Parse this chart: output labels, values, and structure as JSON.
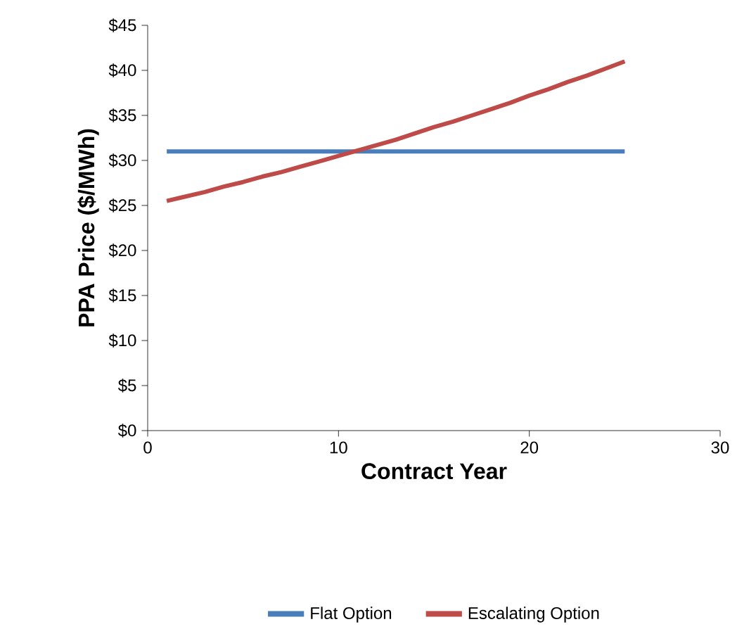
{
  "chart_data": {
    "type": "line",
    "xlabel": "Contract Year",
    "ylabel": "PPA Price ($/MWh)",
    "xlim": [
      0,
      30
    ],
    "xticks": [
      0,
      10,
      20,
      30
    ],
    "ylim": [
      0,
      45
    ],
    "yticks": [
      {
        "value": 0,
        "label": "$0"
      },
      {
        "value": 5,
        "label": "$5"
      },
      {
        "value": 10,
        "label": "$10"
      },
      {
        "value": 15,
        "label": "$15"
      },
      {
        "value": 20,
        "label": "$20"
      },
      {
        "value": 25,
        "label": "$25"
      },
      {
        "value": 30,
        "label": "$30"
      },
      {
        "value": 35,
        "label": "$35"
      },
      {
        "value": 40,
        "label": "$40"
      },
      {
        "value": 45,
        "label": "$45"
      }
    ],
    "x": [
      1,
      2,
      3,
      4,
      5,
      6,
      7,
      8,
      9,
      10,
      11,
      12,
      13,
      14,
      15,
      16,
      17,
      18,
      19,
      20,
      21,
      22,
      23,
      24,
      25
    ],
    "series": [
      {
        "name": "Flat Option",
        "color": "#4a7ebb",
        "values": [
          31,
          31,
          31,
          31,
          31,
          31,
          31,
          31,
          31,
          31,
          31,
          31,
          31,
          31,
          31,
          31,
          31,
          31,
          31,
          31,
          31,
          31,
          31,
          31,
          31
        ]
      },
      {
        "name": "Escalating Option",
        "color": "#be4b48",
        "values": [
          25.5,
          26.0,
          26.5,
          27.1,
          27.6,
          28.2,
          28.7,
          29.3,
          29.9,
          30.5,
          31.1,
          31.7,
          32.3,
          33.0,
          33.7,
          34.3,
          35.0,
          35.7,
          36.4,
          37.2,
          37.9,
          38.7,
          39.4,
          40.2,
          41.0
        ]
      }
    ],
    "grid": false,
    "legend": "bottom",
    "marker": "none",
    "line_style": "solid"
  }
}
